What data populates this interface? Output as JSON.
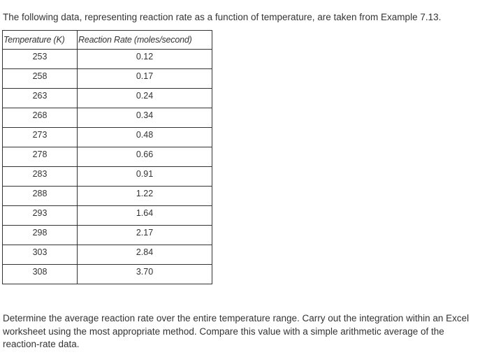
{
  "intro_text": "The following data, representing reaction rate as a function of temperature, are taken from Example 7.13.",
  "table": {
    "headers": [
      "Temperature (K)",
      "Reaction Rate (moles/second)"
    ],
    "rows": [
      [
        "253",
        "0.12"
      ],
      [
        "258",
        "0.17"
      ],
      [
        "263",
        "0.24"
      ],
      [
        "268",
        "0.34"
      ],
      [
        "273",
        "0.48"
      ],
      [
        "278",
        "0.66"
      ],
      [
        "283",
        "0.91"
      ],
      [
        "288",
        "1.22"
      ],
      [
        "293",
        "1.64"
      ],
      [
        "298",
        "2.17"
      ],
      [
        "303",
        "2.84"
      ],
      [
        "308",
        "3.70"
      ]
    ]
  },
  "question_text": "Determine the average reaction rate over the entire temperature range. Carry out the integration within an Excel worksheet using the most appropriate method. Compare this value with a simple arithmetic average of the reaction-rate data."
}
